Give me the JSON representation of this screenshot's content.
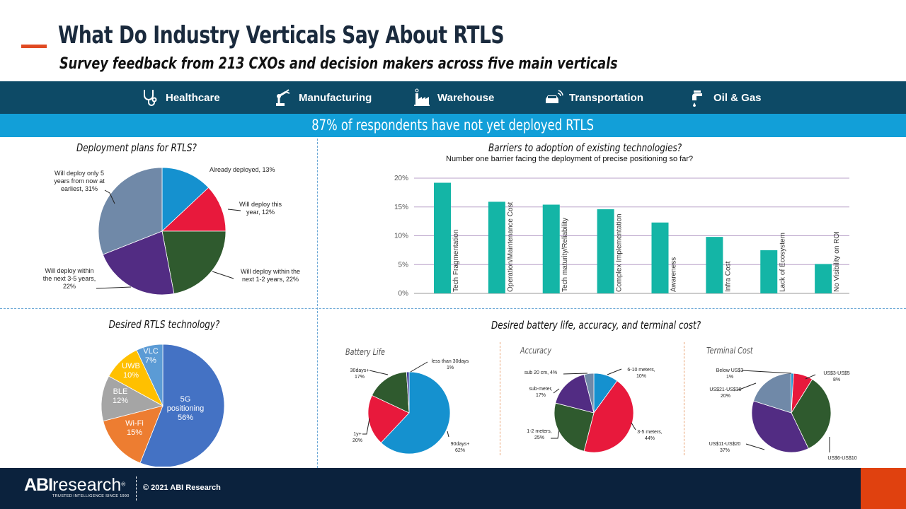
{
  "header": {
    "title": "What Do Industry Verticals Say About RTLS",
    "subtitle": "Survey feedback from 213 CXOs and decision makers across five main verticals"
  },
  "verticals": [
    {
      "label": "Healthcare",
      "icon": "stethoscope-icon"
    },
    {
      "label": "Manufacturing",
      "icon": "robot-arm-icon"
    },
    {
      "label": "Warehouse",
      "icon": "warehouse-icon"
    },
    {
      "label": "Transportation",
      "icon": "connected-car-icon"
    },
    {
      "label": "Oil & Gas",
      "icon": "faucet-drop-icon"
    }
  ],
  "banner": {
    "text": "87% of respondents have not yet deployed RTLS"
  },
  "colors": {
    "dark_band": "#0d4a66",
    "banner": "#129fd8",
    "bar": "#14b5a6",
    "footer": "#0b223d",
    "accent": "#e0410f"
  },
  "chart_data": [
    {
      "id": "deployment",
      "type": "pie",
      "title": "Deployment plans for RTLS?",
      "slices": [
        {
          "label": "Already deployed, 13%",
          "value": 13,
          "color": "#1591cf"
        },
        {
          "label": "Will deploy this year, 12%",
          "value": 12,
          "color": "#e8193c"
        },
        {
          "label": "Will deploy within the next 1-2 years, 22%",
          "value": 22,
          "color": "#2f5a2e"
        },
        {
          "label": "Will deploy within the next 3-5 years, 22%",
          "value": 22,
          "color": "#522c83"
        },
        {
          "label": "Will deploy only 5 years from now at earliest, 31%",
          "value": 31,
          "color": "#7089a8"
        }
      ]
    },
    {
      "id": "barriers",
      "type": "bar",
      "title": "Barriers to adoption of existing technologies?",
      "subtitle": "Number one barrier facing the deployment of precise positioning so far?",
      "categories": [
        "Tech Fragmentation",
        "Operation/Maintenance Cost",
        "Tech maturity/Reliability",
        "Complex Implementation",
        "Awareness",
        "Infra Cost",
        "Lack of Ecosystem",
        "No Visibility on ROI"
      ],
      "values": [
        19.2,
        15.9,
        15.4,
        14.6,
        12.3,
        9.8,
        7.5,
        5.1
      ],
      "ylim": [
        0,
        20
      ],
      "yticks": [
        "0%",
        "5%",
        "10%",
        "15%",
        "20%"
      ],
      "grid": true
    },
    {
      "id": "technology",
      "type": "pie",
      "title": "Desired RTLS technology?",
      "slices": [
        {
          "label": "5G positioning",
          "pct": "56%",
          "value": 56,
          "color": "#4472c4"
        },
        {
          "label": "Wi-Fi",
          "pct": "15%",
          "value": 15,
          "color": "#ed7d31"
        },
        {
          "label": "BLE",
          "pct": "12%",
          "value": 12,
          "color": "#a5a5a5"
        },
        {
          "label": "UWB",
          "pct": "10%",
          "value": 10,
          "color": "#ffc000"
        },
        {
          "label": "VLC",
          "pct": "7%",
          "value": 7,
          "color": "#5b9bd5"
        }
      ]
    },
    {
      "id": "battery",
      "type": "pie",
      "title": "Battery Life",
      "slices": [
        {
          "label": "90days+",
          "pct": "62%",
          "value": 62,
          "color": "#1591cf"
        },
        {
          "label": "1y+",
          "pct": "20%",
          "value": 20,
          "color": "#e8193c"
        },
        {
          "label": "30days+",
          "pct": "17%",
          "value": 17,
          "color": "#2f5a2e"
        },
        {
          "label": "less than 30days",
          "pct": "1%",
          "value": 1,
          "color": "#3a3a9a"
        }
      ]
    },
    {
      "id": "accuracy",
      "type": "pie",
      "title": "Accuracy",
      "slices": [
        {
          "label": "6-10 meters,",
          "pct": "10%",
          "value": 10,
          "color": "#1591cf"
        },
        {
          "label": "3-5 meters,",
          "pct": "44%",
          "value": 44,
          "color": "#e8193c"
        },
        {
          "label": "1-2 meters,",
          "pct": "25%",
          "value": 25,
          "color": "#2f5a2e"
        },
        {
          "label": "sub-meter,",
          "pct": "17%",
          "value": 17,
          "color": "#522c83"
        },
        {
          "label": "sub 20 cm, 4%",
          "pct": "",
          "value": 4,
          "color": "#7089a8"
        }
      ]
    },
    {
      "id": "cost",
      "type": "pie",
      "title": "Terminal Cost",
      "slices": [
        {
          "label": "US$3-US$5",
          "pct": "8%",
          "value": 8,
          "color": "#e8193c"
        },
        {
          "label": "US$6-US$10",
          "pct": "34%",
          "value": 34,
          "color": "#2f5a2e"
        },
        {
          "label": "US$11-US$20",
          "pct": "37%",
          "value": 37,
          "color": "#522c83"
        },
        {
          "label": "US$21-US$30",
          "pct": "20%",
          "value": 20,
          "color": "#7089a8"
        },
        {
          "label": "Below US$3",
          "pct": "1%",
          "value": 1,
          "color": "#1591cf"
        }
      ]
    }
  ],
  "sections": {
    "bottom_right_title": "Desired battery life, accuracy, and terminal cost?"
  },
  "footer": {
    "logo_bold": "ABI",
    "logo_light": "research",
    "logo_reg": "®",
    "tagline": "TRUSTED INTELLIGENCE SINCE 1990",
    "copyright": "© 2021 ABI Research"
  }
}
